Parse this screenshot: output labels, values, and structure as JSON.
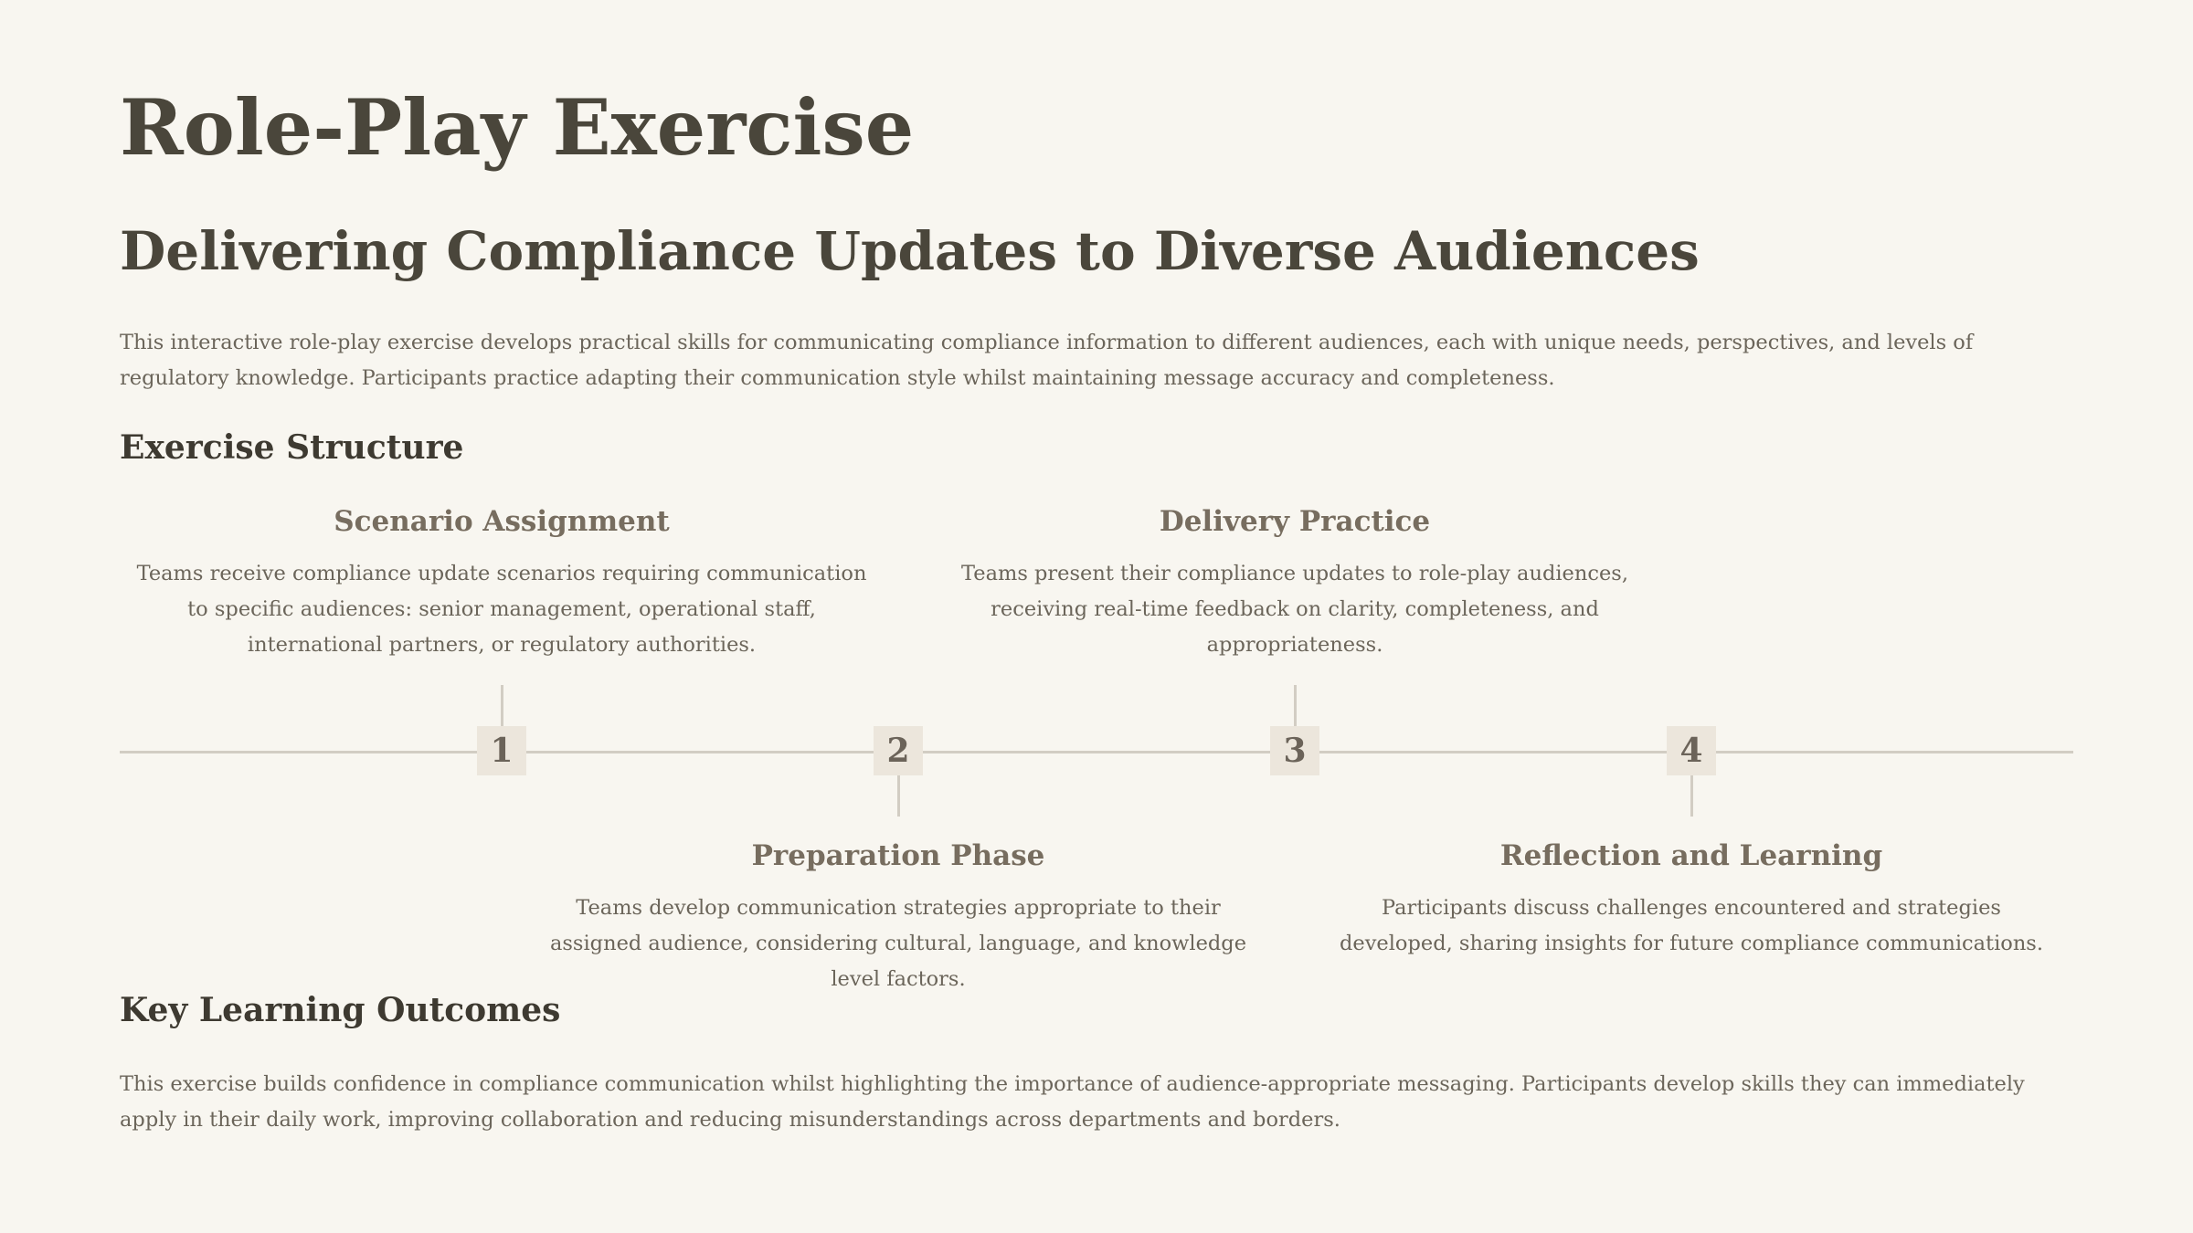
{
  "title": "Role-Play Exercise",
  "subtitle": "Delivering Compliance Updates to Diverse Audiences",
  "intro": "This interactive role-play exercise develops practical skills for communicating compliance information to different audiences, each with unique needs, perspectives, and levels of regulatory knowledge. Participants practice adapting their communication style whilst maintaining message accuracy and completeness.",
  "structure": {
    "heading": "Exercise Structure",
    "steps": [
      {
        "number": "1",
        "title": "Scenario Assignment",
        "description": "Teams receive compliance update scenarios requiring communication to specific audiences: senior management, operational staff, international partners, or regulatory authorities."
      },
      {
        "number": "2",
        "title": "Preparation Phase",
        "description": "Teams develop communication strategies appropriate to their assigned audience, considering cultural, language, and knowledge level factors."
      },
      {
        "number": "3",
        "title": "Delivery Practice",
        "description": "Teams present their compliance updates to role-play audiences, receiving real-time feedback on clarity, completeness, and appropriateness."
      },
      {
        "number": "4",
        "title": "Reflection and Learning",
        "description": "Participants discuss challenges encountered and strategies developed, sharing insights for future compliance communications."
      }
    ]
  },
  "outcomes": {
    "heading": "Key Learning Outcomes",
    "text": "This exercise builds confidence in compliance communication whilst highlighting the importance of audience-appropriate messaging. Participants develop skills they can immediately apply in their daily work, improving collaboration and reducing misunderstandings across departments and borders."
  },
  "colors": {
    "background": "#f8f6f0",
    "heading": "#4a463b",
    "step_title": "#776d5f",
    "body_text": "#6b655a",
    "timeline": "#d2cdc3",
    "node_fill": "#ece6dc"
  }
}
